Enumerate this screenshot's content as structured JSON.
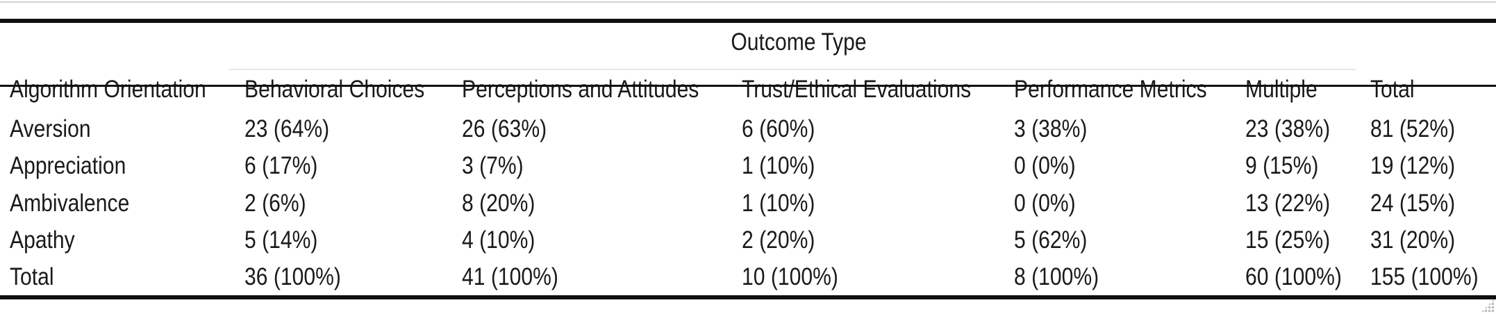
{
  "table": {
    "spanner_label": "Outcome Type",
    "row_header_label": "Algorithm Orientation",
    "columns": [
      "Behavioral Choices",
      "Perceptions and Attitudes",
      "Trust/Ethical Evaluations",
      "Performance Metrics",
      "Multiple",
      "Total"
    ],
    "rows": [
      {
        "label": "Aversion",
        "cells": [
          "23 (64%)",
          "26 (63%)",
          "6 (60%)",
          "3 (38%)",
          "23 (38%)",
          "81 (52%)"
        ]
      },
      {
        "label": "Appreciation",
        "cells": [
          "6 (17%)",
          "3 (7%)",
          "1 (10%)",
          "0 (0%)",
          "9 (15%)",
          "19 (12%)"
        ]
      },
      {
        "label": "Ambivalence",
        "cells": [
          "2 (6%)",
          "8 (20%)",
          "1 (10%)",
          "0 (0%)",
          "13 (22%)",
          "24 (15%)"
        ]
      },
      {
        "label": "Apathy",
        "cells": [
          "5 (14%)",
          "4 (10%)",
          "2 (20%)",
          "5 (62%)",
          "15 (25%)",
          "31 (20%)"
        ]
      },
      {
        "label": "Total",
        "cells": [
          "36 (100%)",
          "41 (100%)",
          "10 (100%)",
          "8 (100%)",
          "60 (100%)",
          "155 (100%)"
        ]
      }
    ]
  }
}
